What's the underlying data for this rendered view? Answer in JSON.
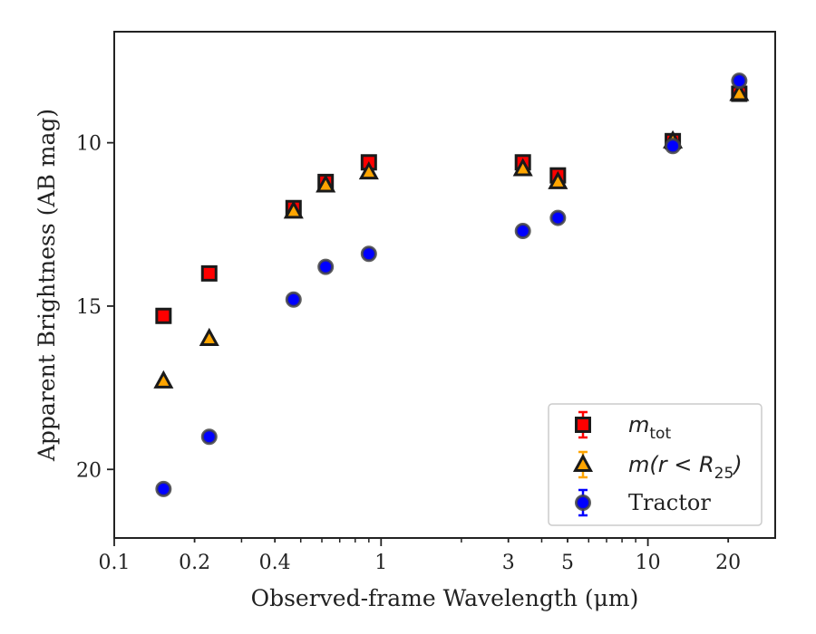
{
  "chart_data": {
    "type": "scatter",
    "xlabel": "Observed-frame Wavelength (μm)",
    "ylabel": "Apparent Brightness (AB mag)",
    "x_scale": "log",
    "y_inverted": true,
    "xlim": [
      0.1,
      30
    ],
    "ylim": [
      22.1,
      6.6
    ],
    "x_ticks": [
      0.1,
      0.2,
      0.4,
      1,
      3,
      5,
      10,
      20
    ],
    "x_tick_labels": [
      "0.1",
      "0.2",
      "0.4",
      "1",
      "3",
      "5",
      "10",
      "20"
    ],
    "y_ticks": [
      10,
      15,
      20
    ],
    "y_tick_labels": [
      "10",
      "15",
      "20"
    ],
    "grid": false,
    "legend_position": "lower-right",
    "series": [
      {
        "label_main": "m",
        "label_sub": "tot",
        "marker": "square",
        "color": "#ff0000",
        "points": [
          {
            "x": 0.153,
            "y": 15.3
          },
          {
            "x": 0.227,
            "y": 14.0
          },
          {
            "x": 0.47,
            "y": 12.0
          },
          {
            "x": 0.62,
            "y": 11.2
          },
          {
            "x": 0.9,
            "y": 10.6
          },
          {
            "x": 3.4,
            "y": 10.6
          },
          {
            "x": 4.6,
            "y": 11.0
          },
          {
            "x": 12.4,
            "y": 9.95
          },
          {
            "x": 22.0,
            "y": 8.5
          }
        ]
      },
      {
        "label_main": "m(r < R",
        "label_sub": "25",
        "label_end": ")",
        "marker": "triangle",
        "color": "#ffa500",
        "points": [
          {
            "x": 0.153,
            "y": 17.3
          },
          {
            "x": 0.227,
            "y": 16.0
          },
          {
            "x": 0.47,
            "y": 12.1
          },
          {
            "x": 0.62,
            "y": 11.3
          },
          {
            "x": 0.9,
            "y": 10.9
          },
          {
            "x": 3.4,
            "y": 10.8
          },
          {
            "x": 4.6,
            "y": 11.2
          },
          {
            "x": 12.4,
            "y": 9.95
          },
          {
            "x": 22.0,
            "y": 8.5
          }
        ]
      },
      {
        "label_main": "Tractor",
        "marker": "circle",
        "color": "#0000ff",
        "points": [
          {
            "x": 0.153,
            "y": 20.6
          },
          {
            "x": 0.227,
            "y": 19.0
          },
          {
            "x": 0.47,
            "y": 14.8
          },
          {
            "x": 0.62,
            "y": 13.8
          },
          {
            "x": 0.9,
            "y": 13.4
          },
          {
            "x": 3.4,
            "y": 12.7
          },
          {
            "x": 4.6,
            "y": 12.3
          },
          {
            "x": 12.4,
            "y": 10.1
          },
          {
            "x": 22.0,
            "y": 8.1
          }
        ]
      }
    ]
  }
}
